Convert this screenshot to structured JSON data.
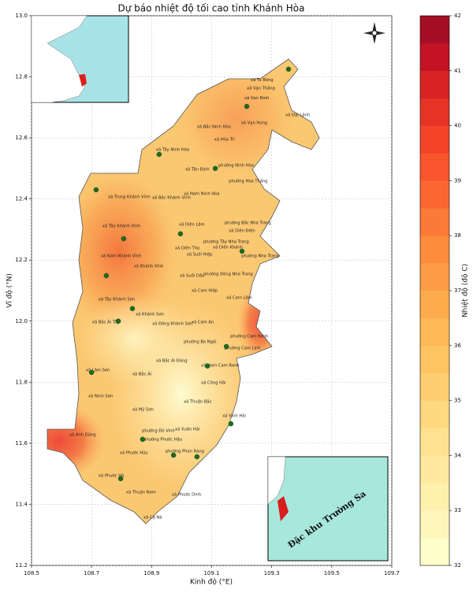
{
  "chart_data": {
    "type": "map",
    "title": "Dự báo nhiệt độ tối cao tỉnh Khánh Hòa",
    "x_label": "Kinh độ (°E)",
    "y_label": "Vĩ độ (°N)",
    "xlim": [
      108.5,
      109.7
    ],
    "ylim": [
      11.2,
      13.0
    ],
    "xticks": [
      108.5,
      108.7,
      108.9,
      109.1,
      109.3,
      109.5,
      109.7
    ],
    "yticks": [
      11.2,
      11.4,
      11.6,
      11.8,
      {
        "value": 12,
        "label": "12.0"
      },
      12.2,
      12.4,
      12.6,
      12.8,
      {
        "value": 13,
        "label": "13.0"
      }
    ],
    "grid": true,
    "colorbar": {
      "label": "Nhiệt độ (độ C)",
      "lim": [
        32,
        42
      ],
      "ticks": [
        32,
        33,
        34,
        35,
        36,
        37,
        38,
        39,
        40,
        41,
        42
      ],
      "colors": [
        "#ffffcc",
        "#fff6bc",
        "#fff0ad",
        "#ffe99e",
        "#fee28f",
        "#fed97f",
        "#fecf70",
        "#fec462",
        "#feb855",
        "#fdab4b",
        "#fd9c44",
        "#fd8d3c",
        "#fc7a37",
        "#fc6731",
        "#f9552d",
        "#f24329",
        "#e73326",
        "#d92224",
        "#c41325",
        "#a50f26"
      ]
    },
    "places": [
      {
        "name": "xã Tu Bông",
        "lon": 109.23,
        "lat": 12.79
      },
      {
        "name": "xã Vạn Thắng",
        "lon": 109.217,
        "lat": 12.763
      },
      {
        "name": "xã Vạn Ninh",
        "lon": 109.209,
        "lat": 12.73
      },
      {
        "name": "xã Đại Lãnh",
        "lon": 109.346,
        "lat": 12.675
      },
      {
        "name": "xã Vạn Hưng",
        "lon": 109.198,
        "lat": 12.649
      },
      {
        "name": "xã Bắc Ninh Hòa",
        "lon": 109.051,
        "lat": 12.636
      },
      {
        "name": "xã Hòa Trí",
        "lon": 109.109,
        "lat": 12.595
      },
      {
        "name": "xã Tây Ninh Hòa",
        "lon": 108.915,
        "lat": 12.562
      },
      {
        "name": "phường Ninh Hòa",
        "lon": 109.122,
        "lat": 12.51
      },
      {
        "name": "xã Tân Định",
        "lon": 109.012,
        "lat": 12.497
      },
      {
        "name": "phường Hòa Thắng",
        "lon": 109.157,
        "lat": 12.458
      },
      {
        "name": "xã Nam Ninh Hòa",
        "lon": 109.007,
        "lat": 12.417
      },
      {
        "name": "xã Trung Khánh Vĩnh",
        "lon": 108.755,
        "lat": 12.407
      },
      {
        "name": "xã Bắc Khánh Vĩnh",
        "lon": 108.902,
        "lat": 12.404
      },
      {
        "name": "xã Diên Lâm",
        "lon": 108.991,
        "lat": 12.317
      },
      {
        "name": "phường Bắc Nha Trang",
        "lon": 109.143,
        "lat": 12.322
      },
      {
        "name": "xã Diên Điền",
        "lon": 109.157,
        "lat": 12.296
      },
      {
        "name": "xã Tây Khánh Vĩnh",
        "lon": 108.736,
        "lat": 12.312
      },
      {
        "name": "phường Tây Nha Trang",
        "lon": 109.072,
        "lat": 12.26
      },
      {
        "name": "xã Diên Thọ",
        "lon": 108.978,
        "lat": 12.239
      },
      {
        "name": "xã Diên Khánh",
        "lon": 109.104,
        "lat": 12.242
      },
      {
        "name": "xã Suối Hiệp",
        "lon": 109.017,
        "lat": 12.218
      },
      {
        "name": "xã Nam Khánh Vĩnh",
        "lon": 108.731,
        "lat": 12.213
      },
      {
        "name": "phường Nha Trang",
        "lon": 109.199,
        "lat": 12.214
      },
      {
        "name": "xã Khánh Vĩnh",
        "lon": 108.841,
        "lat": 12.18
      },
      {
        "name": "xã Suối Dầu",
        "lon": 108.994,
        "lat": 12.149
      },
      {
        "name": "phường Đông Nha Trang",
        "lon": 109.072,
        "lat": 12.154
      },
      {
        "name": "xã Cam Hiệp",
        "lon": 109.033,
        "lat": 12.1
      },
      {
        "name": "xã Cam Lâm",
        "lon": 109.149,
        "lat": 12.077
      },
      {
        "name": "xã Tây Khánh Sơn",
        "lon": 108.723,
        "lat": 12.072
      },
      {
        "name": "xã Khánh Sơn",
        "lon": 108.847,
        "lat": 12.023
      },
      {
        "name": "xã Bắc Ái Tây",
        "lon": 108.702,
        "lat": 11.997
      },
      {
        "name": "xã Đông Khánh Sơn",
        "lon": 108.902,
        "lat": 11.992
      },
      {
        "name": "xã Cam An",
        "lon": 109.033,
        "lat": 11.997
      },
      {
        "name": "phường Cam Ranh",
        "lon": 109.162,
        "lat": 11.95
      },
      {
        "name": "phường Ba Ngòi",
        "lon": 109.007,
        "lat": 11.932
      },
      {
        "name": "phường Cam Linh",
        "lon": 109.143,
        "lat": 11.912
      },
      {
        "name": "xã Bắc Ái Đông",
        "lon": 108.915,
        "lat": 11.871
      },
      {
        "name": "xã Nam Cam Ranh",
        "lon": 109.065,
        "lat": 11.855
      },
      {
        "name": "xã Lâm Sơn",
        "lon": 108.681,
        "lat": 11.84
      },
      {
        "name": "xã Bắc Ái",
        "lon": 108.836,
        "lat": 11.827
      },
      {
        "name": "xã Công Hải",
        "lon": 109.065,
        "lat": 11.798
      },
      {
        "name": "xã Ninh Sơn",
        "lon": 108.689,
        "lat": 11.755
      },
      {
        "name": "xã Thuận Bắc",
        "lon": 109.007,
        "lat": 11.736
      },
      {
        "name": "xã Mỹ Sơn",
        "lon": 108.836,
        "lat": 11.711
      },
      {
        "name": "xã Vĩnh Hải",
        "lon": 109.136,
        "lat": 11.69
      },
      {
        "name": "xã Xuân Hải",
        "lon": 108.978,
        "lat": 11.646
      },
      {
        "name": "phường Đô Vinh",
        "lon": 108.868,
        "lat": 11.641
      },
      {
        "name": "xã Anh Dũng",
        "lon": 108.626,
        "lat": 11.628
      },
      {
        "name": "phường Phước Hậu",
        "lon": 108.873,
        "lat": 11.613
      },
      {
        "name": "xã Phước Hữu",
        "lon": 108.794,
        "lat": 11.569
      },
      {
        "name": "phường Phan Rang",
        "lon": 108.946,
        "lat": 11.574
      },
      {
        "name": "xã Phước Hà",
        "lon": 108.723,
        "lat": 11.494
      },
      {
        "name": "xã Thuận Nam",
        "lon": 108.815,
        "lat": 11.44
      },
      {
        "name": "xã Phước Dinh",
        "lon": 108.967,
        "lat": 11.432
      },
      {
        "name": "xã Cà Ná",
        "lon": 108.873,
        "lat": 11.357
      }
    ],
    "stations": [
      {
        "lon": 109.356,
        "lat": 12.825
      },
      {
        "lon": 109.217,
        "lat": 12.703
      },
      {
        "lon": 108.925,
        "lat": 12.546
      },
      {
        "lon": 109.112,
        "lat": 12.5
      },
      {
        "lon": 108.715,
        "lat": 12.43
      },
      {
        "lon": 108.807,
        "lat": 12.27
      },
      {
        "lon": 108.996,
        "lat": 12.286
      },
      {
        "lon": 109.201,
        "lat": 12.229
      },
      {
        "lon": 108.749,
        "lat": 12.149
      },
      {
        "lon": 108.836,
        "lat": 12.041
      },
      {
        "lon": 108.789,
        "lat": 12.0
      },
      {
        "lon": 109.149,
        "lat": 11.917
      },
      {
        "lon": 109.086,
        "lat": 11.853
      },
      {
        "lon": 108.7,
        "lat": 11.832
      },
      {
        "lon": 109.164,
        "lat": 11.664
      },
      {
        "lon": 108.87,
        "lat": 11.613
      },
      {
        "lon": 108.973,
        "lat": 11.561
      },
      {
        "lon": 108.797,
        "lat": 11.484
      },
      {
        "lon": 109.051,
        "lat": 11.556
      }
    ],
    "station_color": "#1e6b1e",
    "inset_label": "Đặc khu Trường Sa"
  }
}
